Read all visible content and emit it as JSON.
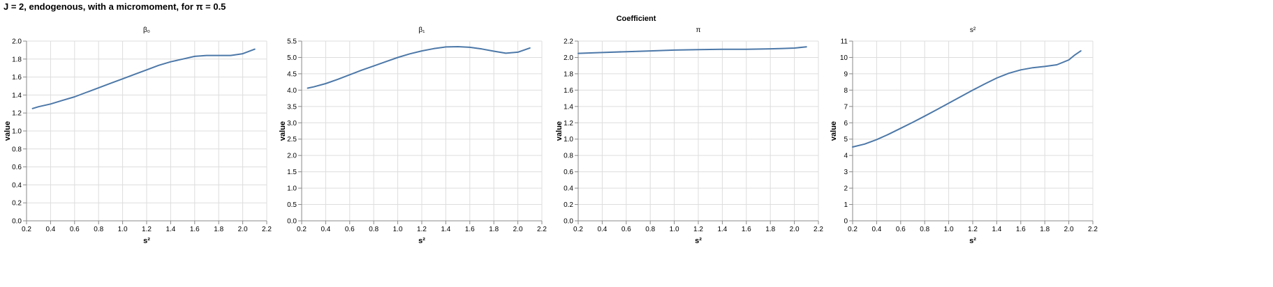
{
  "title": "J = 2, endogenous, with a micromoment,  for π = 0.5",
  "facet_title": "Coefficient",
  "colors": {
    "line": "#4c78a8",
    "grid": "#dddddd",
    "axis": "#888888"
  },
  "chart_data": [
    {
      "type": "line",
      "facet": "β₀",
      "xlabel": "s²",
      "ylabel": "value",
      "xlim": [
        0.2,
        2.2
      ],
      "ylim": [
        0,
        2
      ],
      "x_ticks": [
        "0.2",
        "0.4",
        "0.6",
        "0.8",
        "1.0",
        "1.2",
        "1.4",
        "1.6",
        "1.8",
        "2.0",
        "2.2"
      ],
      "y_ticks": [
        "0.0",
        "0.2",
        "0.4",
        "0.6",
        "0.8",
        "1.0",
        "1.2",
        "1.4",
        "1.6",
        "1.8",
        "2.0"
      ],
      "grid": true,
      "x": [
        0.25,
        0.3,
        0.4,
        0.5,
        0.6,
        0.7,
        0.8,
        0.9,
        1.0,
        1.1,
        1.2,
        1.3,
        1.4,
        1.5,
        1.6,
        1.7,
        1.8,
        1.9,
        2.0,
        2.1
      ],
      "y": [
        1.25,
        1.27,
        1.3,
        1.34,
        1.38,
        1.43,
        1.48,
        1.53,
        1.58,
        1.63,
        1.68,
        1.73,
        1.77,
        1.8,
        1.83,
        1.84,
        1.84,
        1.84,
        1.86,
        1.91
      ]
    },
    {
      "type": "line",
      "facet": "β₁",
      "xlabel": "s²",
      "ylabel": "value",
      "xlim": [
        0.2,
        2.2
      ],
      "ylim": [
        0,
        5.5
      ],
      "x_ticks": [
        "0.2",
        "0.4",
        "0.6",
        "0.8",
        "1.0",
        "1.2",
        "1.4",
        "1.6",
        "1.8",
        "2.0",
        "2.2"
      ],
      "y_ticks": [
        "0.0",
        "0.5",
        "1.0",
        "1.5",
        "2.0",
        "2.5",
        "3.0",
        "3.5",
        "4.0",
        "4.5",
        "5.0",
        "5.5"
      ],
      "grid": true,
      "x": [
        0.25,
        0.3,
        0.4,
        0.5,
        0.6,
        0.7,
        0.8,
        0.9,
        1.0,
        1.1,
        1.2,
        1.3,
        1.4,
        1.5,
        1.6,
        1.7,
        1.8,
        1.9,
        2.0,
        2.1
      ],
      "y": [
        4.06,
        4.1,
        4.2,
        4.33,
        4.47,
        4.61,
        4.74,
        4.87,
        5.0,
        5.11,
        5.2,
        5.27,
        5.32,
        5.33,
        5.31,
        5.26,
        5.19,
        5.13,
        5.16,
        5.29
      ]
    },
    {
      "type": "line",
      "facet": "π",
      "xlabel": "s²",
      "ylabel": "value",
      "xlim": [
        0.2,
        2.2
      ],
      "ylim": [
        0,
        2.2
      ],
      "x_ticks": [
        "0.2",
        "0.4",
        "0.6",
        "0.8",
        "1.0",
        "1.2",
        "1.4",
        "1.6",
        "1.8",
        "2.0",
        "2.2"
      ],
      "y_ticks": [
        "0.0",
        "0.2",
        "0.4",
        "0.6",
        "0.8",
        "1.0",
        "1.2",
        "1.4",
        "1.6",
        "1.8",
        "2.0",
        "2.2"
      ],
      "grid": true,
      "x": [
        0.2,
        0.4,
        0.6,
        0.8,
        1.0,
        1.2,
        1.4,
        1.6,
        1.8,
        1.9,
        2.0,
        2.1
      ],
      "y": [
        2.05,
        2.06,
        2.07,
        2.08,
        2.09,
        2.095,
        2.1,
        2.1,
        2.105,
        2.11,
        2.115,
        2.13
      ]
    },
    {
      "type": "line",
      "facet": "s²",
      "xlabel": "s²",
      "ylabel": "value",
      "xlim": [
        0.2,
        2.2
      ],
      "ylim": [
        0,
        11
      ],
      "x_ticks": [
        "0.2",
        "0.4",
        "0.6",
        "0.8",
        "1.0",
        "1.2",
        "1.4",
        "1.6",
        "1.8",
        "2.0",
        "2.2"
      ],
      "y_ticks": [
        "0",
        "1",
        "2",
        "3",
        "4",
        "5",
        "6",
        "7",
        "8",
        "9",
        "10",
        "11"
      ],
      "grid": true,
      "x": [
        0.2,
        0.3,
        0.4,
        0.5,
        0.6,
        0.7,
        0.8,
        0.9,
        1.0,
        1.1,
        1.2,
        1.3,
        1.4,
        1.5,
        1.6,
        1.7,
        1.8,
        1.9,
        2.0,
        2.05,
        2.1
      ],
      "y": [
        4.52,
        4.7,
        4.97,
        5.3,
        5.66,
        6.03,
        6.41,
        6.8,
        7.2,
        7.6,
        8.0,
        8.38,
        8.74,
        9.03,
        9.24,
        9.37,
        9.45,
        9.55,
        9.85,
        10.15,
        10.4
      ]
    }
  ]
}
